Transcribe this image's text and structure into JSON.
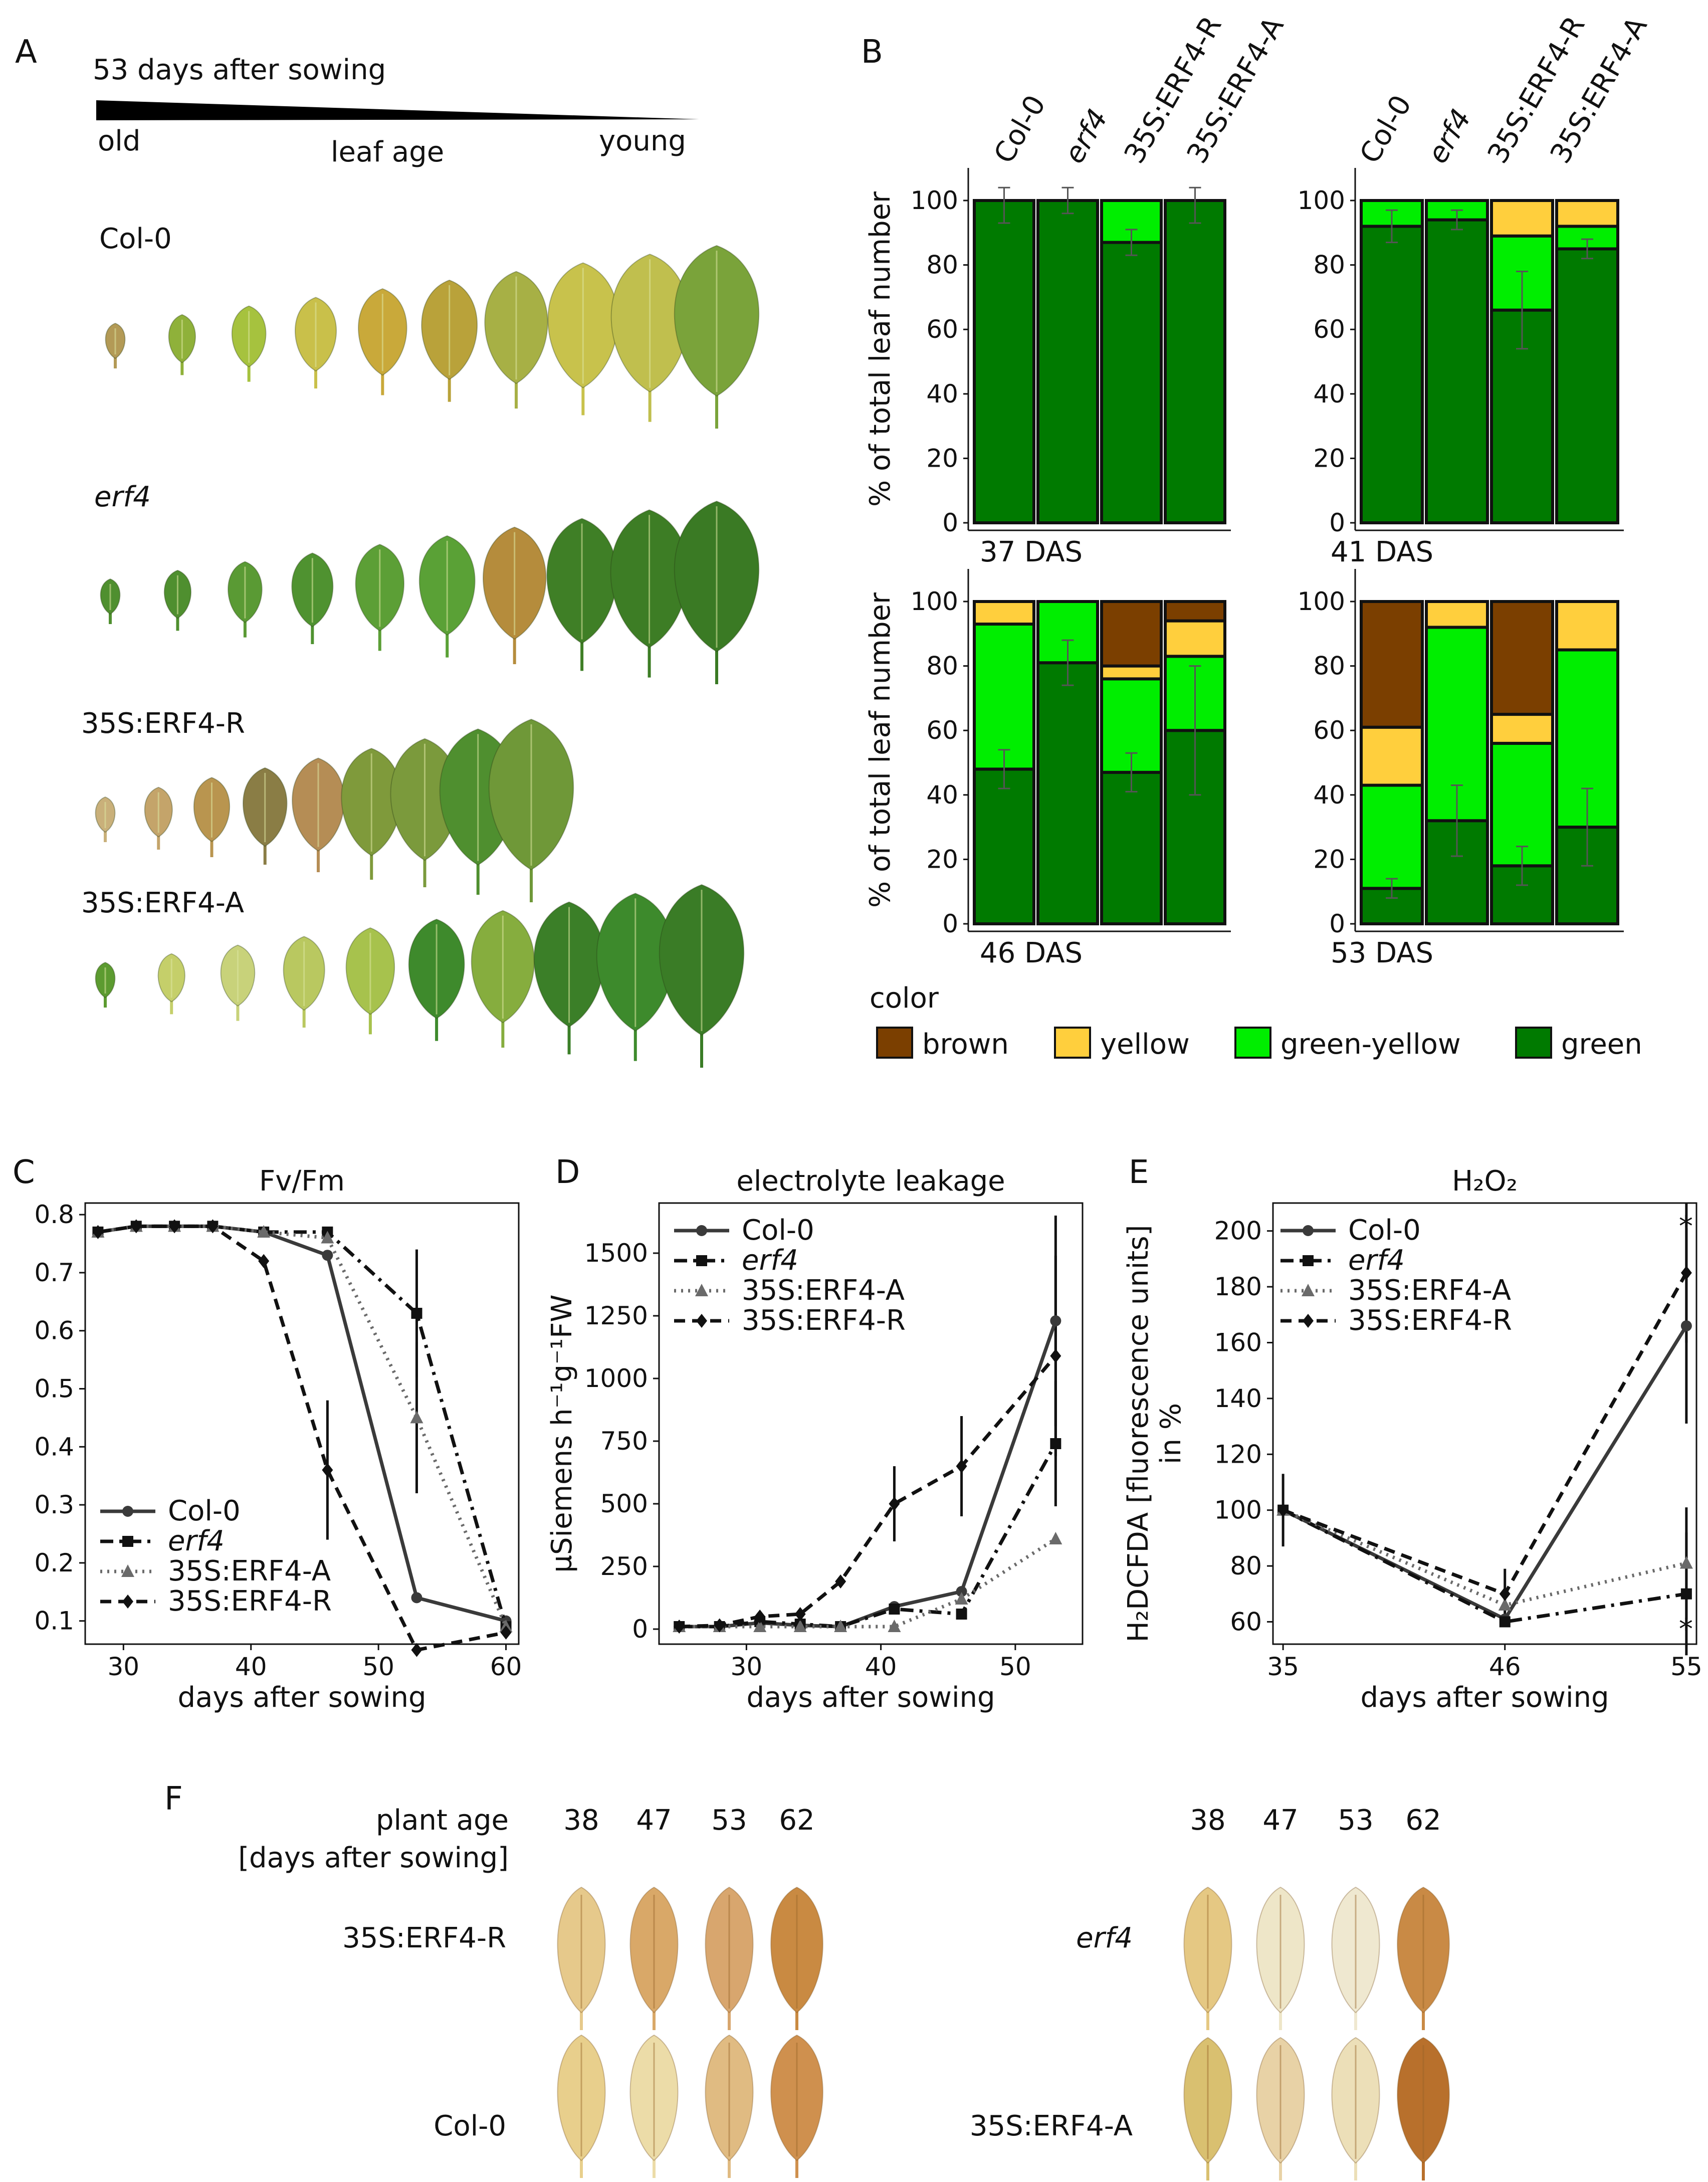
{
  "panels": {
    "A": "A",
    "B": "B",
    "C": "C",
    "D": "D",
    "E": "E",
    "F": "F"
  },
  "panel_a": {
    "title": "53 days after sowing",
    "age_old": "old",
    "age_mid": "leaf age",
    "age_young": "young",
    "rows": [
      {
        "label": "Col-0",
        "italic": false,
        "colors": [
          "#b39a56",
          "#8fb13a",
          "#a6c23e",
          "#c9c04a",
          "#c9a93a",
          "#b9a23a",
          "#a7b045",
          "#c8c24c",
          "#c0bf4e",
          "#7aa33a"
        ]
      },
      {
        "label": "erf4",
        "italic": true,
        "colors": [
          "#4f8f2f",
          "#4f8f2f",
          "#5a9a34",
          "#4f9230",
          "#5c9f36",
          "#5aa136",
          "#b58c3c",
          "#3f7f26",
          "#3d7d25",
          "#3a7a24"
        ]
      },
      {
        "label": "35S:ERF4-R",
        "italic": false,
        "colors": [
          "#c9b07a",
          "#c4a46a",
          "#b9954f",
          "#8a7d45",
          "#b58d55",
          "#7f9a3b",
          "#7b9a3c",
          "#4f8f2f",
          "#6f9838"
        ]
      },
      {
        "label": "35S:ERF4-A",
        "italic": false,
        "colors": [
          "#5c9b30",
          "#c5cf6a",
          "#c8d27a",
          "#b9c860",
          "#a7c24d",
          "#3e8a2c",
          "#86ad3e",
          "#3b7f28",
          "#3d8a2c",
          "#3a7c26"
        ]
      }
    ]
  },
  "panel_b": {
    "genotypes": [
      "Col-0",
      "erf4",
      "35S:ERF4-R",
      "35S:ERF4-A"
    ],
    "ylabel": "% of total leaf number",
    "legend_title": "color",
    "legend": [
      {
        "name": "brown",
        "color": "#7b3f00"
      },
      {
        "name": "yellow",
        "color": "#ffcf3d"
      },
      {
        "name": "green-yellow",
        "color": "#00ee00"
      },
      {
        "name": "green",
        "color": "#007a00"
      }
    ],
    "yticks": [
      "0",
      "20",
      "40",
      "60",
      "80",
      "100"
    ]
  },
  "panel_c": {
    "title": "Fv/Fm",
    "xlabel": "days after sowing"
  },
  "panel_d": {
    "title": "electrolyte leakage",
    "xlabel": "days after sowing",
    "ylabel": "µSiemens h⁻¹g⁻¹FW"
  },
  "panel_e": {
    "title": "H₂O₂",
    "xlabel": "days after sowing",
    "ylabel_1": "H₂DCFDA [fluorescence units]",
    "ylabel_2": "in %",
    "sig": "*"
  },
  "series_styles": [
    {
      "name": "Col-0",
      "color": "#3a3a3a",
      "dash": "solid",
      "marker": "circle"
    },
    {
      "name": "erf4",
      "color": "#111111",
      "dash": "dashdot",
      "marker": "square"
    },
    {
      "name": "35S:ERF4-A",
      "color": "#6a6a6a",
      "dash": "dotted",
      "marker": "triangle"
    },
    {
      "name": "35S:ERF4-R",
      "color": "#111111",
      "dash": "dashed",
      "marker": "diamond"
    }
  ],
  "panel_f": {
    "plant_age": "plant age",
    "days_label": "[days after sowing]",
    "ages": [
      "38",
      "47",
      "53",
      "62"
    ],
    "left_rows": [
      {
        "label": "35S:ERF4-R",
        "italic": false,
        "colors": [
          "#e6c98b",
          "#d9a868",
          "#d8a66e",
          "#c98a42"
        ]
      },
      {
        "label": "Col-0",
        "italic": false,
        "colors": [
          "#e8cf8c",
          "#ecdca8",
          "#e0bb82",
          "#cf904e"
        ]
      }
    ],
    "right_rows": [
      {
        "label": "erf4",
        "italic": true,
        "colors": [
          "#e5c883",
          "#eee6c8",
          "#efe8d0",
          "#c98a45"
        ]
      },
      {
        "label": "35S:ERF4-A",
        "italic": false,
        "colors": [
          "#d9c070",
          "#e8d2a6",
          "#ecdfb8",
          "#b8702c"
        ]
      }
    ]
  },
  "chart_data": [
    {
      "type": "bar",
      "stacked": true,
      "title": "37 DAS",
      "categories": [
        "Col-0",
        "erf4",
        "35S:ERF4-R",
        "35S:ERF4-A"
      ],
      "ylim": [
        0,
        100
      ],
      "ylabel": "% of total leaf number",
      "series": [
        {
          "name": "green",
          "values": [
            100,
            100,
            87,
            100
          ]
        },
        {
          "name": "green-yellow",
          "values": [
            0,
            0,
            13,
            0
          ]
        },
        {
          "name": "yellow",
          "values": [
            0,
            0,
            0,
            0
          ]
        },
        {
          "name": "brown",
          "values": [
            0,
            0,
            0,
            0
          ]
        }
      ],
      "errors": [
        [
          100,
          7
        ],
        [
          100,
          4
        ],
        [
          87,
          4
        ],
        [
          100,
          7
        ]
      ]
    },
    {
      "type": "bar",
      "stacked": true,
      "title": "41 DAS",
      "categories": [
        "Col-0",
        "erf4",
        "35S:ERF4-R",
        "35S:ERF4-A"
      ],
      "ylim": [
        0,
        100
      ],
      "series": [
        {
          "name": "green",
          "values": [
            92,
            94,
            66,
            85
          ]
        },
        {
          "name": "green-yellow",
          "values": [
            8,
            6,
            23,
            7
          ]
        },
        {
          "name": "yellow",
          "values": [
            0,
            0,
            11,
            8
          ]
        },
        {
          "name": "brown",
          "values": [
            0,
            0,
            0,
            0
          ]
        }
      ],
      "errors": [
        [
          92,
          5
        ],
        [
          94,
          3
        ],
        [
          66,
          12
        ],
        [
          85,
          3
        ]
      ]
    },
    {
      "type": "bar",
      "stacked": true,
      "title": "46 DAS",
      "categories": [
        "Col-0",
        "erf4",
        "35S:ERF4-R",
        "35S:ERF4-A"
      ],
      "ylim": [
        0,
        100
      ],
      "series": [
        {
          "name": "green",
          "values": [
            48,
            81,
            47,
            60
          ]
        },
        {
          "name": "green-yellow",
          "values": [
            45,
            19,
            29,
            23
          ]
        },
        {
          "name": "yellow",
          "values": [
            7,
            0,
            4,
            11
          ]
        },
        {
          "name": "brown",
          "values": [
            0,
            0,
            20,
            6
          ]
        }
      ],
      "errors": [
        [
          48,
          6
        ],
        [
          81,
          7
        ],
        [
          47,
          6
        ],
        [
          60,
          20
        ]
      ]
    },
    {
      "type": "bar",
      "stacked": true,
      "title": "53 DAS",
      "categories": [
        "Col-0",
        "erf4",
        "35S:ERF4-R",
        "35S:ERF4-A"
      ],
      "ylim": [
        0,
        100
      ],
      "series": [
        {
          "name": "green",
          "values": [
            11,
            32,
            18,
            30
          ]
        },
        {
          "name": "green-yellow",
          "values": [
            32,
            60,
            38,
            55
          ]
        },
        {
          "name": "yellow",
          "values": [
            18,
            8,
            9,
            15
          ]
        },
        {
          "name": "brown",
          "values": [
            39,
            0,
            35,
            0
          ]
        }
      ],
      "errors": [
        [
          11,
          3
        ],
        [
          32,
          11
        ],
        [
          18,
          6
        ],
        [
          30,
          12
        ]
      ]
    },
    {
      "type": "line",
      "title": "Fv/Fm",
      "xlabel": "days after sowing",
      "xlim": [
        27,
        61
      ],
      "ylim": [
        0.06,
        0.82
      ],
      "xticks": [
        30,
        40,
        50,
        60
      ],
      "yticks": [
        0.1,
        0.2,
        0.3,
        0.4,
        0.5,
        0.6,
        0.7,
        0.8
      ],
      "series": [
        {
          "name": "Col-0",
          "x": [
            28,
            31,
            34,
            37,
            41,
            46,
            53,
            60
          ],
          "y": [
            0.77,
            0.78,
            0.78,
            0.78,
            0.77,
            0.73,
            0.14,
            0.1
          ]
        },
        {
          "name": "erf4",
          "x": [
            28,
            31,
            34,
            37,
            41,
            46,
            53,
            60
          ],
          "y": [
            0.77,
            0.78,
            0.78,
            0.78,
            0.77,
            0.77,
            0.63,
            0.09
          ]
        },
        {
          "name": "35S:ERF4-A",
          "x": [
            28,
            31,
            34,
            37,
            41,
            46,
            53,
            60
          ],
          "y": [
            0.77,
            0.78,
            0.78,
            0.78,
            0.77,
            0.76,
            0.45,
            0.09
          ]
        },
        {
          "name": "35S:ERF4-R",
          "x": [
            28,
            31,
            34,
            37,
            41,
            46,
            53,
            60
          ],
          "y": [
            0.77,
            0.78,
            0.78,
            0.78,
            0.72,
            0.36,
            0.05,
            0.08
          ]
        }
      ],
      "errorbars": [
        {
          "x": 46,
          "y": 0.36,
          "err": 0.12
        },
        {
          "x": 53,
          "y": 0.63,
          "err": 0.11
        },
        {
          "x": 53,
          "y": 0.45,
          "err": 0.13
        }
      ]
    },
    {
      "type": "line",
      "title": "electrolyte leakage",
      "xlabel": "days after sowing",
      "ylabel": "µSiemens h⁻¹g⁻¹FW",
      "xlim": [
        23.5,
        55
      ],
      "ylim": [
        -60,
        1700
      ],
      "xticks": [
        30,
        40,
        50
      ],
      "yticks": [
        0,
        250,
        500,
        750,
        1000,
        1250,
        1500
      ],
      "series": [
        {
          "name": "Col-0",
          "x": [
            25,
            28,
            31,
            34,
            37,
            41,
            46,
            53
          ],
          "y": [
            10,
            10,
            25,
            15,
            10,
            90,
            150,
            1230
          ]
        },
        {
          "name": "erf4",
          "x": [
            25,
            28,
            31,
            34,
            37,
            41,
            46,
            53
          ],
          "y": [
            10,
            10,
            30,
            20,
            10,
            80,
            60,
            740
          ]
        },
        {
          "name": "35S:ERF4-A",
          "x": [
            25,
            28,
            31,
            34,
            37,
            41,
            46,
            53
          ],
          "y": [
            10,
            10,
            10,
            10,
            10,
            10,
            120,
            360
          ]
        },
        {
          "name": "35S:ERF4-R",
          "x": [
            25,
            28,
            31,
            34,
            37,
            41,
            46,
            53
          ],
          "y": [
            10,
            15,
            50,
            60,
            190,
            500,
            650,
            1090
          ]
        }
      ],
      "errorbars": [
        {
          "x": 41,
          "y": 500,
          "err": 150
        },
        {
          "x": 46,
          "y": 650,
          "err": 200
        },
        {
          "x": 53,
          "y": 1230,
          "err": 420
        },
        {
          "x": 53,
          "y": 1090,
          "err": 400
        },
        {
          "x": 53,
          "y": 740,
          "err": 250
        }
      ]
    },
    {
      "type": "line",
      "title": "H₂O₂",
      "xlabel": "days after sowing",
      "ylabel": "H₂DCFDA [fluorescence units] in %",
      "xlim": [
        34.5,
        55.5
      ],
      "ylim": [
        52,
        210
      ],
      "xticks": [
        35,
        46,
        55
      ],
      "yticks": [
        60,
        80,
        100,
        120,
        140,
        160,
        180,
        200
      ],
      "series": [
        {
          "name": "Col-0",
          "x": [
            35,
            46,
            55
          ],
          "y": [
            100,
            61,
            166
          ]
        },
        {
          "name": "erf4",
          "x": [
            35,
            46,
            55
          ],
          "y": [
            100,
            60,
            70
          ]
        },
        {
          "name": "35S:ERF4-A",
          "x": [
            35,
            46,
            55
          ],
          "y": [
            100,
            66,
            81
          ]
        },
        {
          "name": "35S:ERF4-R",
          "x": [
            35,
            46,
            55
          ],
          "y": [
            100,
            70,
            185
          ]
        }
      ],
      "errorbars": [
        {
          "x": 35,
          "y": 100,
          "err": 13
        },
        {
          "x": 46,
          "y": 70,
          "err": 9
        },
        {
          "x": 55,
          "y": 185,
          "err": 25
        },
        {
          "x": 55,
          "y": 166,
          "err": 35
        },
        {
          "x": 55,
          "y": 81,
          "err": 20
        },
        {
          "x": 55,
          "y": 70,
          "err": 22
        }
      ]
    }
  ]
}
